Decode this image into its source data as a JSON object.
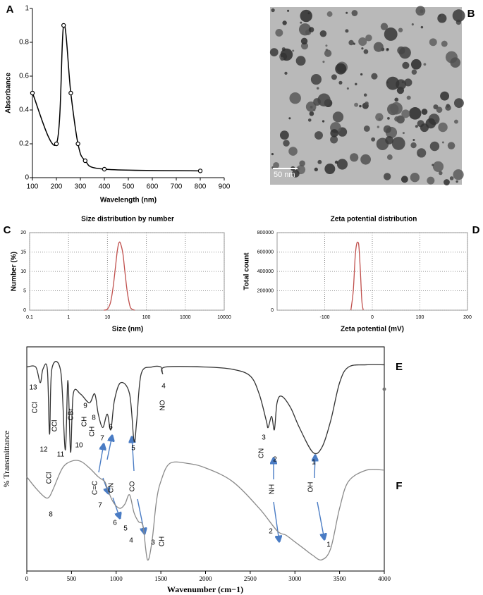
{
  "chart_data": [
    {
      "type": "line",
      "label": "A",
      "x": [
        100,
        200,
        230,
        260,
        290,
        320,
        400,
        800
      ],
      "values": [
        0.5,
        0.2,
        0.9,
        0.5,
        0.2,
        0.1,
        0.05,
        0.04
      ],
      "color": "#000000",
      "markers": true,
      "x_label": "Wavelength (nm)",
      "y_label": "Absorbance",
      "xlim": [
        100,
        900
      ],
      "xticks": [
        100,
        200,
        300,
        400,
        500,
        600,
        700,
        800,
        900
      ],
      "ylim": [
        0,
        1
      ],
      "yticks": [
        0,
        0.2,
        0.4,
        0.6,
        0.8,
        1
      ],
      "grid": false
    },
    {
      "type": "line",
      "label": "C",
      "title": "Size distribution by number",
      "x": [
        8,
        10,
        12,
        14,
        16,
        18,
        20,
        22,
        25,
        28,
        32,
        36,
        40,
        50
      ],
      "values": [
        0,
        0.3,
        2,
        6,
        11,
        15.5,
        17.5,
        17,
        14.5,
        10,
        5,
        2,
        0.5,
        0
      ],
      "color": "#c0504d",
      "markers": false,
      "x_label": "Size (nm)",
      "y_label": "Number (%)",
      "xscale": "log",
      "xlim": [
        0.1,
        10000
      ],
      "xticks": [
        0.1,
        1,
        10,
        100,
        1000,
        10000
      ],
      "ylim": [
        0,
        20
      ],
      "yticks": [
        0,
        5,
        10,
        15,
        20
      ],
      "grid": true
    },
    {
      "type": "line",
      "label": "D",
      "title": "Zeta potential distribution",
      "x": [
        -45,
        -40,
        -36,
        -33,
        -30,
        -28,
        -25,
        -22,
        -19
      ],
      "values": [
        0,
        200000,
        550000,
        680000,
        700000,
        650000,
        400000,
        100000,
        0
      ],
      "color": "#c0504d",
      "markers": false,
      "x_label": "Zeta potential (mV)",
      "y_label": "Total count",
      "xlim": [
        -200,
        200
      ],
      "xticks": [
        -100,
        0,
        100,
        200
      ],
      "ylim": [
        0,
        800000
      ],
      "yticks": [
        0,
        200000,
        400000,
        600000,
        800000
      ],
      "grid": true
    },
    {
      "type": "line",
      "x_label": "Wavenumber (cm−1)",
      "y_label": "% Transmittance",
      "xlim": [
        0,
        4000
      ],
      "xticks": [
        0,
        500,
        1000,
        1500,
        2000,
        2500,
        3000,
        3500,
        4000
      ],
      "ylim": [
        0,
        100
      ],
      "grid": false,
      "series": [
        {
          "name": "E",
          "color": "#333333",
          "x": [
            0,
            100,
            150,
            180,
            230,
            255,
            280,
            380,
            430,
            460,
            490,
            520,
            600,
            700,
            760,
            800,
            850,
            900,
            940,
            980,
            1050,
            1150,
            1200,
            1230,
            1280,
            1400,
            1500,
            1520,
            1550,
            2000,
            2300,
            2500,
            2600,
            2680,
            2700,
            2740,
            2770,
            2800,
            2850,
            2950,
            3050,
            3200,
            3300,
            3400,
            3500,
            3600,
            3800,
            4000
          ],
          "values": [
            91,
            91,
            84,
            90,
            90,
            61,
            90,
            89,
            54,
            85,
            53,
            79,
            79,
            75,
            79,
            70,
            64,
            70,
            63,
            76,
            84,
            79,
            58,
            67,
            88,
            91,
            91,
            88,
            91,
            91,
            90,
            87,
            79,
            67,
            64,
            69,
            63,
            75,
            78,
            73,
            64,
            53,
            55,
            67,
            84,
            91,
            92,
            92
          ],
          "annotations": [
            "13",
            "CCl",
            "12",
            "CCl",
            "11",
            "CBr",
            "10",
            "9",
            "CH",
            "8",
            "CH",
            "7",
            "6",
            "5",
            "4",
            "NO",
            "3",
            "CN",
            "2",
            "1"
          ]
        },
        {
          "name": "F",
          "color": "#8a8a8a",
          "x": [
            0,
            100,
            200,
            250,
            300,
            400,
            500,
            600,
            700,
            800,
            870,
            900,
            950,
            1000,
            1050,
            1100,
            1150,
            1200,
            1250,
            1300,
            1350,
            1400,
            1450,
            1500,
            1600,
            1800,
            2000,
            2300,
            2600,
            2800,
            2900,
            3000,
            3100,
            3200,
            3300,
            3400,
            3500,
            3600,
            3800,
            4000
          ],
          "values": [
            42,
            37,
            33,
            33,
            37,
            46,
            49,
            49,
            46,
            42,
            40,
            37,
            32,
            29,
            28,
            30,
            34,
            26,
            22,
            20,
            5,
            13,
            31,
            40,
            48,
            48,
            46,
            40,
            28,
            18,
            16,
            13,
            10,
            7,
            5,
            10,
            28,
            40,
            45,
            45
          ],
          "annotations": [
            "CCl",
            "8",
            "C=C",
            "7",
            "CN",
            "6",
            "5",
            "CO",
            "4",
            "3",
            "CH",
            "NH",
            "2",
            "OH",
            "1"
          ]
        }
      ]
    }
  ],
  "image": {
    "label": "B",
    "scale_bar": "50 nm"
  }
}
